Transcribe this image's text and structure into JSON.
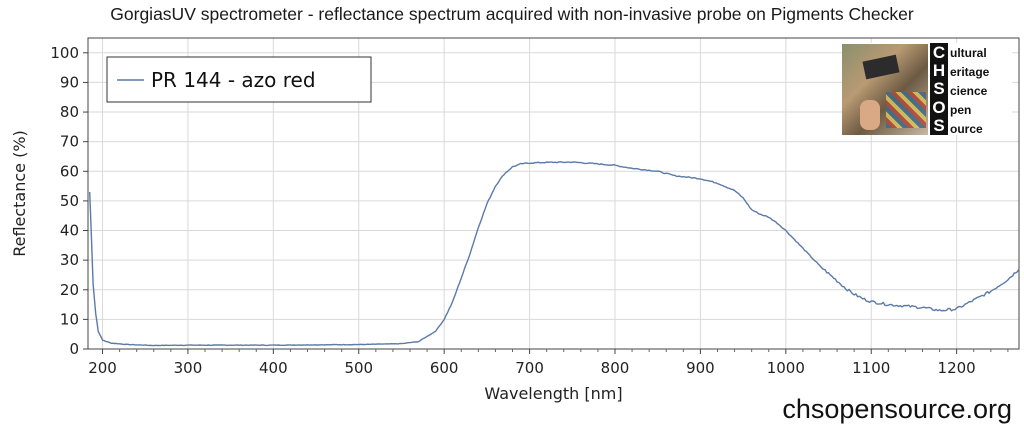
{
  "chart_data": {
    "type": "line",
    "title": "GorgiasUV spectrometer - reflectance spectrum acquired with non-invasive probe on Pigments Checker",
    "xlabel": "Wavelength [nm]",
    "ylabel": "Reflectance (%)",
    "xlim": [
      183,
      1273
    ],
    "ylim": [
      0,
      105
    ],
    "xticks": [
      200,
      300,
      400,
      500,
      600,
      700,
      800,
      900,
      1000,
      1100,
      1200
    ],
    "yticks": [
      0,
      10,
      20,
      30,
      40,
      50,
      60,
      70,
      80,
      90,
      100
    ],
    "grid": true,
    "legend_position": "top-left",
    "series": [
      {
        "name": "PR 144 - azo red",
        "color": "#5b7aa8",
        "x": [
          185,
          187,
          189,
          192,
          195,
          200,
          210,
          230,
          260,
          300,
          350,
          400,
          450,
          500,
          550,
          570,
          590,
          600,
          610,
          620,
          630,
          640,
          650,
          660,
          670,
          680,
          690,
          700,
          720,
          750,
          780,
          800,
          820,
          850,
          870,
          900,
          920,
          940,
          950,
          960,
          970,
          980,
          990,
          1000,
          1010,
          1020,
          1030,
          1040,
          1050,
          1060,
          1070,
          1080,
          1090,
          1100,
          1120,
          1140,
          1160,
          1180,
          1200,
          1220,
          1240,
          1260,
          1273
        ],
        "y": [
          53,
          38,
          22,
          12,
          6,
          3,
          2,
          1.5,
          1.2,
          1.3,
          1.3,
          1.3,
          1.4,
          1.5,
          1.8,
          2.5,
          6,
          10,
          16,
          24,
          32,
          41,
          49,
          55,
          59,
          61.5,
          62.5,
          62.8,
          63,
          63.1,
          62.5,
          62,
          61,
          60,
          58.5,
          57.5,
          56,
          53.5,
          51,
          47,
          45.5,
          44.5,
          42.5,
          40,
          37,
          34,
          31,
          28,
          25.5,
          23,
          20.5,
          18.5,
          17,
          16,
          15,
          14.5,
          14,
          13,
          13.5,
          16.5,
          19.5,
          23.5,
          27
        ]
      }
    ]
  },
  "logo": {
    "letters": [
      "C",
      "H",
      "S",
      "O",
      "S"
    ],
    "words": [
      "ultural",
      "eritage",
      "cience",
      "pen",
      "ource"
    ]
  },
  "footer": {
    "url": "chsopensource.org"
  }
}
